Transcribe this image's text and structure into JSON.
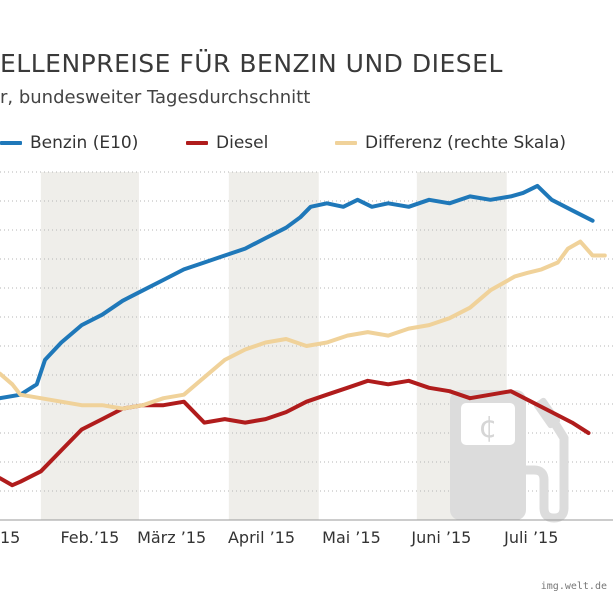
{
  "header": {
    "title": "ELLENPREISE FÜR BENZIN UND DIESEL",
    "subtitle": "r, bundesweiter Tagesdurchschnitt"
  },
  "legend": [
    {
      "label": "Benzin (E10)",
      "color": "#1f78b9"
    },
    {
      "label": "Diesel",
      "color": "#b01c1c"
    },
    {
      "label": "Differenz (rechte Skala)",
      "color": "#f0d29a"
    }
  ],
  "footer": {
    "credit": "img.welt.de"
  },
  "chart_data": {
    "type": "line",
    "x_range": [
      0,
      30
    ],
    "x_ticks": [
      {
        "x": 0.0,
        "label": "15"
      },
      {
        "x": 4.4,
        "label": "Feb.’15"
      },
      {
        "x": 8.4,
        "label": "März ’15"
      },
      {
        "x": 12.8,
        "label": "April ’15"
      },
      {
        "x": 17.2,
        "label": "Mai ’15"
      },
      {
        "x": 21.6,
        "label": "Juni ’15"
      },
      {
        "x": 26.0,
        "label": "Juli ’15"
      }
    ],
    "shaded_bands": [
      [
        2.0,
        6.8
      ],
      [
        11.2,
        15.6
      ],
      [
        20.4,
        24.8
      ]
    ],
    "gridlines": 12,
    "axis_color": "#999999",
    "series": [
      {
        "name": "Benzin (E10)",
        "color": "#1f78b9",
        "x": [
          0,
          1.0,
          1.8,
          2.2,
          3.0,
          4.0,
          5.0,
          6.0,
          7.0,
          8.0,
          9.0,
          10.0,
          11.0,
          12.0,
          13.0,
          14.0,
          14.7,
          15.2,
          16.0,
          16.8,
          17.5,
          18.2,
          19.0,
          20.0,
          21.0,
          22.0,
          23.0,
          24.0,
          25.0,
          25.6,
          26.3,
          27.0,
          28.0,
          29.0
        ],
        "y": [
          3.5,
          3.6,
          3.9,
          4.6,
          5.1,
          5.6,
          5.9,
          6.3,
          6.6,
          6.9,
          7.2,
          7.4,
          7.6,
          7.8,
          8.1,
          8.4,
          8.7,
          9.0,
          9.1,
          9.0,
          9.2,
          9.0,
          9.1,
          9.0,
          9.2,
          9.1,
          9.3,
          9.2,
          9.3,
          9.4,
          9.6,
          9.2,
          8.9,
          8.6
        ]
      },
      {
        "name": "Diesel",
        "color": "#b01c1c",
        "x": [
          0,
          0.6,
          1.0,
          2.0,
          3.0,
          4.0,
          5.0,
          6.0,
          7.0,
          8.0,
          9.0,
          10.0,
          11.0,
          12.0,
          13.0,
          14.0,
          15.0,
          16.0,
          17.0,
          18.0,
          19.0,
          20.0,
          21.0,
          22.0,
          23.0,
          24.0,
          25.0,
          26.0,
          27.0,
          28.0,
          28.8
        ],
        "y": [
          1.2,
          1.0,
          1.1,
          1.4,
          2.0,
          2.6,
          2.9,
          3.2,
          3.3,
          3.3,
          3.4,
          2.8,
          2.9,
          2.8,
          2.9,
          3.1,
          3.4,
          3.6,
          3.8,
          4.0,
          3.9,
          4.0,
          3.8,
          3.7,
          3.5,
          3.6,
          3.7,
          3.4,
          3.1,
          2.8,
          2.5
        ]
      },
      {
        "name": "Differenz (rechte Skala)",
        "color": "#f0d29a",
        "x": [
          0,
          0.6,
          1.0,
          2.0,
          3.0,
          4.0,
          5.0,
          6.0,
          7.0,
          8.0,
          9.0,
          10.0,
          11.0,
          12.0,
          13.0,
          14.0,
          15.0,
          16.0,
          17.0,
          18.0,
          19.0,
          20.0,
          21.0,
          22.0,
          23.0,
          24.0,
          24.6,
          25.2,
          25.8,
          26.5,
          27.3,
          27.8,
          28.4,
          29.0,
          29.6
        ],
        "y": [
          4.2,
          3.9,
          3.6,
          3.5,
          3.4,
          3.3,
          3.3,
          3.2,
          3.3,
          3.5,
          3.6,
          4.1,
          4.6,
          4.9,
          5.1,
          5.2,
          5.0,
          5.1,
          5.3,
          5.4,
          5.3,
          5.5,
          5.6,
          5.8,
          6.1,
          6.6,
          6.8,
          7.0,
          7.1,
          7.2,
          7.4,
          7.8,
          8.0,
          7.6,
          7.6
        ]
      }
    ],
    "y_range": [
      0,
      10
    ]
  }
}
